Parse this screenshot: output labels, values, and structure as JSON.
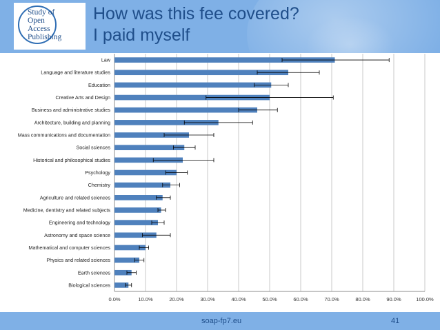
{
  "header": {
    "title_line1": "How was this fee covered?",
    "title_line2": "I paid myself",
    "logo_lines": [
      "Study of",
      "Open",
      "Access",
      "Publishing"
    ]
  },
  "footer": {
    "site": "soap-fp7.eu",
    "page_number": "41"
  },
  "colors": {
    "header_bg": "#7fb0e6",
    "bar": "#4f81bd",
    "title": "#1f4e8a"
  },
  "chart_data": {
    "type": "bar",
    "orientation": "horizontal",
    "error_bars": true,
    "grid": true,
    "xlim": [
      0,
      100
    ],
    "x_ticks": [
      "0.0%",
      "10.0%",
      "20.0%",
      "30.0%",
      "40.0%",
      "50.0%",
      "60.0%",
      "70.0%",
      "80.0%",
      "90.0%",
      "100.0%"
    ],
    "categories": [
      "Law",
      "Language and literature studies",
      "Education",
      "Creative Arts and Design",
      "Business and administrative studies",
      "Architecture, building and planning",
      "Mass communications and documentation",
      "Social sciences",
      "Historical and philosophical studies",
      "Psychology",
      "Chemistry",
      "Agriculture and related sciences",
      "Medicine, dentistry and related subjects",
      "Engineering and technology",
      "Astronomy and space science",
      "Mathematical and computer sciences",
      "Physics and related sciences",
      "Earth sciences",
      "Biological sciences"
    ],
    "values": [
      71.0,
      56.0,
      50.5,
      50.0,
      46.0,
      33.5,
      24.0,
      22.5,
      22.0,
      20.0,
      18.0,
      15.5,
      15.0,
      14.0,
      13.5,
      10.0,
      8.0,
      5.5,
      4.5
    ],
    "error_low": [
      54.0,
      46.0,
      45.0,
      29.5,
      40.0,
      22.5,
      16.0,
      19.0,
      12.5,
      16.5,
      15.5,
      13.5,
      14.0,
      12.0,
      9.0,
      8.0,
      6.5,
      4.0,
      3.5
    ],
    "error_high": [
      88.5,
      66.0,
      56.0,
      70.5,
      52.5,
      44.5,
      32.0,
      26.0,
      32.0,
      23.5,
      21.0,
      18.0,
      16.5,
      16.0,
      18.0,
      11.0,
      9.5,
      7.0,
      5.5
    ]
  }
}
